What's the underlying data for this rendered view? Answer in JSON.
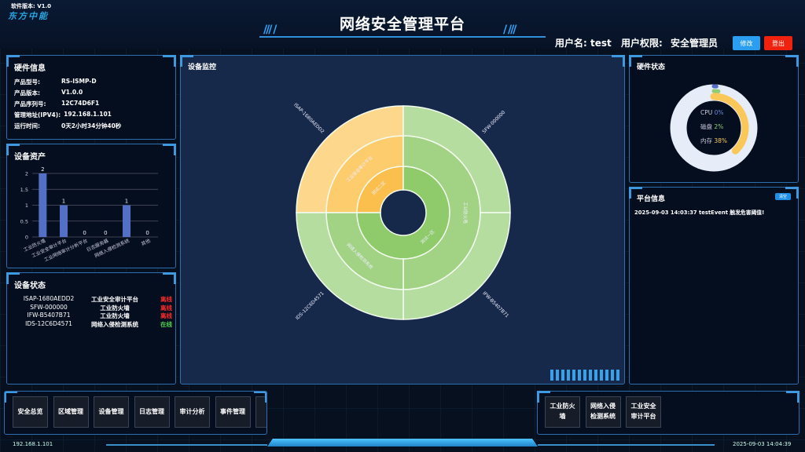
{
  "header": {
    "software_version": "软件版本: V1.0",
    "logo": "东方中能",
    "title": "网络安全管理平台",
    "user_label": "用户名:",
    "user_name": "test",
    "role_label": "用户权限:",
    "role": "安全管理员",
    "edit_button": "修改",
    "logout_button": "登出"
  },
  "hardware_info": {
    "title": "硬件信息",
    "rows": [
      {
        "label": "产品型号:",
        "value": "RS-ISMP-D"
      },
      {
        "label": "产品版本:",
        "value": "V1.0.0"
      },
      {
        "label": "产品序列号:",
        "value": "12C74D6F1"
      },
      {
        "label": "管理地址(IPV4):",
        "value": "192.168.1.101"
      },
      {
        "label": "运行时间:",
        "value": "0天2小时34分钟40秒"
      }
    ]
  },
  "device_assets": {
    "title": "设备资产"
  },
  "chart_data": [
    {
      "type": "bar",
      "title": "设备资产",
      "categories": [
        "工业防火墙",
        "工业安全审计平台",
        "工业网络审计分析平台",
        "日志服务器",
        "网络入侵检测系统",
        "其他"
      ],
      "values": [
        2,
        1,
        0,
        0,
        1,
        0
      ],
      "ylim": [
        0,
        2
      ],
      "yticks": [
        "0",
        "0.5",
        "1",
        "1.5",
        "2"
      ],
      "grid": true,
      "color": "#5470c6"
    },
    {
      "type": "sunburst",
      "title": "设备监控",
      "rings": [
        {
          "level": "区域",
          "items": [
            {
              "name": "测试二区",
              "value": 1,
              "color": "#fbbf4d"
            },
            {
              "name": "测试一区",
              "value": 3,
              "color": "#8fcb6b"
            }
          ]
        },
        {
          "level": "设备类型",
          "items": [
            {
              "name": "工业安全审计平台",
              "value": 1,
              "color": "#fccc6d"
            },
            {
              "name": "工业防火墙",
              "value": 2,
              "color": "#a2d384"
            },
            {
              "name": "网络入侵检测系统",
              "value": 1,
              "color": "#a2d384"
            }
          ]
        },
        {
          "level": "设备",
          "items": [
            {
              "name": "ISAP-1680AEDD2",
              "value": 1,
              "color": "#fdd88c"
            },
            {
              "name": "SFW-000000",
              "value": 1,
              "color": "#b5dda0"
            },
            {
              "name": "IFW-B5407B71",
              "value": 1,
              "color": "#b5dda0"
            },
            {
              "name": "IDS-12C6D4571",
              "value": 1,
              "color": "#b5dda0"
            }
          ]
        }
      ]
    },
    {
      "type": "pie",
      "title": "硬件状态",
      "series": [
        {
          "name": "CPU",
          "value": 0,
          "color": "#5470c6"
        },
        {
          "name": "磁盘",
          "value": 2,
          "color": "#91cc75"
        },
        {
          "name": "内存",
          "value": 38,
          "color": "#fac858"
        }
      ],
      "unit": "%"
    }
  ],
  "device_status": {
    "title": "设备状态",
    "rows": [
      {
        "id": "ISAP-1680AEDD2",
        "type": "工业安全审计平台",
        "status": "离线",
        "color": "#ff2a2a"
      },
      {
        "id": "SFW-000000",
        "type": "工业防火墙",
        "status": "离线",
        "color": "#ff2a2a"
      },
      {
        "id": "IFW-B5407B71",
        "type": "工业防火墙",
        "status": "离线",
        "color": "#ff2a2a"
      },
      {
        "id": "IDS-12C6D4571",
        "type": "网络入侵检测系统",
        "status": "在线",
        "color": "#4ed34e"
      }
    ]
  },
  "monitor": {
    "title": "设备监控"
  },
  "hardware_status": {
    "title": "硬件状态",
    "cpu_label": "CPU",
    "cpu": "0%",
    "disk_label": "磁盘",
    "disk": "2%",
    "mem_label": "内存",
    "mem": "38%"
  },
  "platform_info": {
    "title": "平台信息",
    "clear_button": "清空",
    "messages": [
      "2025-09-03 14:03:37 testEvent 触发危害阈值!"
    ]
  },
  "nav": [
    "安全总览",
    "区域管理",
    "设备管理",
    "日志管理",
    "审计分析",
    "事件管理",
    "安全"
  ],
  "quick_devices": [
    "工业防火墙",
    "网络入侵检测系统",
    "工业安全审计平台"
  ],
  "footer": {
    "ip": "192.168.1.101",
    "time": "2025-09-03 14:04:39"
  }
}
